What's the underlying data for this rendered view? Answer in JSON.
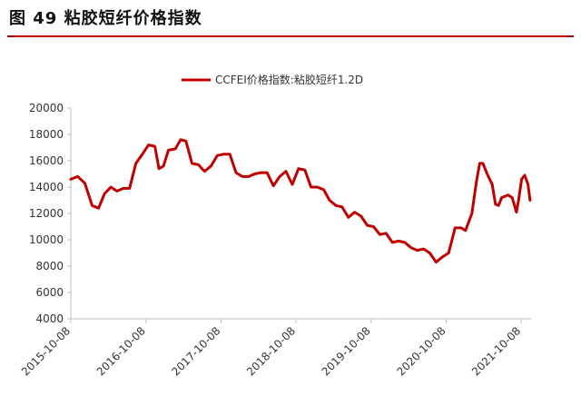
{
  "figure": {
    "title": "图 49 粘胶短纤价格指数"
  },
  "colors": {
    "series": "#c00000",
    "axis": "#bfbfbf",
    "text": "#333333",
    "rule": "#c00000"
  },
  "chart_data": {
    "type": "line",
    "title": "",
    "xlabel": "",
    "ylabel": "",
    "ylim": [
      4000,
      20000
    ],
    "yticks": [
      4000,
      6000,
      8000,
      10000,
      12000,
      14000,
      16000,
      18000,
      20000
    ],
    "xlim": [
      "2015-10-08",
      "2021-11-25"
    ],
    "xticks": [
      "2015-10-08",
      "2016-10-08",
      "2017-10-08",
      "2018-10-08",
      "2019-10-08",
      "2020-10-08",
      "2021-10-08"
    ],
    "grid": false,
    "legend": "top-center",
    "series": [
      {
        "name": "CCFEI价格指数:粘胶短纤1.2D",
        "color": "#c00000",
        "points": [
          [
            "2015-10-08",
            14600
          ],
          [
            "2015-11-10",
            14800
          ],
          [
            "2015-12-15",
            14300
          ],
          [
            "2016-01-20",
            12600
          ],
          [
            "2016-02-20",
            12400
          ],
          [
            "2016-03-20",
            13500
          ],
          [
            "2016-04-20",
            14000
          ],
          [
            "2016-05-20",
            13700
          ],
          [
            "2016-06-20",
            13900
          ],
          [
            "2016-07-20",
            13900
          ],
          [
            "2016-08-20",
            15800
          ],
          [
            "2016-09-20",
            16500
          ],
          [
            "2016-10-20",
            17200
          ],
          [
            "2016-11-20",
            17100
          ],
          [
            "2016-12-10",
            15400
          ],
          [
            "2017-01-01",
            15600
          ],
          [
            "2017-01-25",
            16800
          ],
          [
            "2017-02-28",
            16900
          ],
          [
            "2017-03-25",
            17600
          ],
          [
            "2017-04-20",
            17500
          ],
          [
            "2017-05-20",
            15800
          ],
          [
            "2017-06-20",
            15700
          ],
          [
            "2017-07-20",
            15200
          ],
          [
            "2017-08-20",
            15600
          ],
          [
            "2017-09-20",
            16400
          ],
          [
            "2017-10-20",
            16500
          ],
          [
            "2017-11-20",
            16500
          ],
          [
            "2017-12-20",
            15100
          ],
          [
            "2018-01-20",
            14800
          ],
          [
            "2018-02-20",
            14800
          ],
          [
            "2018-03-20",
            15000
          ],
          [
            "2018-04-20",
            15100
          ],
          [
            "2018-05-20",
            15100
          ],
          [
            "2018-06-20",
            14100
          ],
          [
            "2018-07-20",
            14800
          ],
          [
            "2018-08-20",
            15200
          ],
          [
            "2018-09-20",
            14200
          ],
          [
            "2018-10-20",
            15400
          ],
          [
            "2018-11-20",
            15300
          ],
          [
            "2018-12-20",
            14000
          ],
          [
            "2019-01-20",
            14000
          ],
          [
            "2019-02-20",
            13800
          ],
          [
            "2019-03-20",
            13000
          ],
          [
            "2019-04-20",
            12600
          ],
          [
            "2019-05-20",
            12500
          ],
          [
            "2019-06-20",
            11700
          ],
          [
            "2019-07-20",
            12100
          ],
          [
            "2019-08-20",
            11800
          ],
          [
            "2019-09-20",
            11100
          ],
          [
            "2019-10-20",
            11000
          ],
          [
            "2019-11-20",
            10400
          ],
          [
            "2019-12-20",
            10500
          ],
          [
            "2020-01-20",
            9800
          ],
          [
            "2020-02-20",
            9900
          ],
          [
            "2020-03-20",
            9800
          ],
          [
            "2020-04-20",
            9400
          ],
          [
            "2020-05-20",
            9200
          ],
          [
            "2020-06-20",
            9300
          ],
          [
            "2020-07-20",
            9000
          ],
          [
            "2020-08-20",
            8300
          ],
          [
            "2020-09-20",
            8700
          ],
          [
            "2020-10-20",
            9000
          ],
          [
            "2020-11-20",
            10900
          ],
          [
            "2020-12-20",
            10900
          ],
          [
            "2021-01-10",
            10700
          ],
          [
            "2021-02-10",
            12000
          ],
          [
            "2021-03-05",
            14500
          ],
          [
            "2021-03-20",
            15800
          ],
          [
            "2021-04-05",
            15800
          ],
          [
            "2021-04-25",
            15000
          ],
          [
            "2021-05-20",
            14200
          ],
          [
            "2021-06-05",
            12700
          ],
          [
            "2021-06-20",
            12600
          ],
          [
            "2021-07-05",
            13200
          ],
          [
            "2021-08-05",
            13400
          ],
          [
            "2021-08-25",
            13200
          ],
          [
            "2021-09-15",
            12100
          ],
          [
            "2021-09-25",
            13000
          ],
          [
            "2021-10-10",
            14600
          ],
          [
            "2021-10-25",
            14900
          ],
          [
            "2021-11-10",
            14200
          ],
          [
            "2021-11-20",
            13000
          ]
        ]
      }
    ]
  }
}
